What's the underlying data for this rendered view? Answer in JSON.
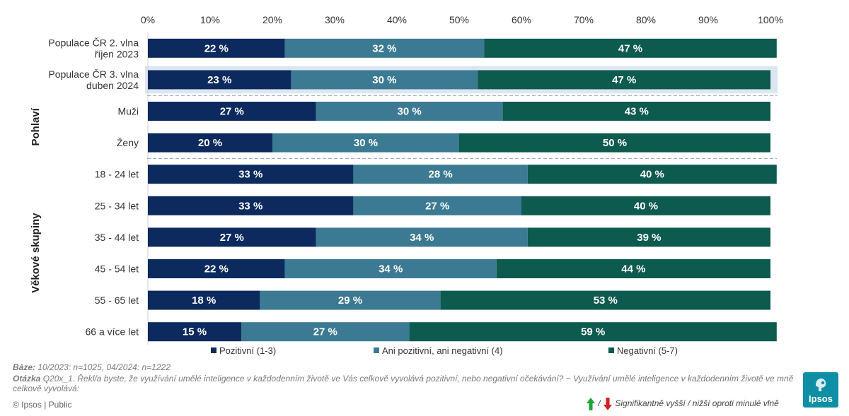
{
  "chart_data": {
    "type": "bar",
    "orientation": "horizontal",
    "stacked": true,
    "xlim": [
      0,
      100
    ],
    "x_ticks": [
      "0%",
      "10%",
      "20%",
      "30%",
      "40%",
      "50%",
      "60%",
      "70%",
      "80%",
      "90%",
      "100%"
    ],
    "categories": [
      "Populace ČR 2. vlna\nříjen 2023",
      "Populace ČR 3. vlna\nduben 2024",
      "Muži",
      "Ženy",
      "18 - 24 let",
      "25 - 34 let",
      "35 - 44 let",
      "45 - 54 let",
      "55 - 65 let",
      "66 a více let"
    ],
    "groups": [
      {
        "label": "Pohlaví",
        "categories": [
          "Muži",
          "Ženy"
        ]
      },
      {
        "label": "Věkové skupiny",
        "categories": [
          "18 - 24 let",
          "25 - 34 let",
          "35 - 44 let",
          "45 - 54 let",
          "55 - 65 let",
          "66 a více let"
        ]
      }
    ],
    "highlighted_category": "Populace ČR 3. vlna\nduben 2024",
    "series": [
      {
        "name": "Pozitivní (1-3)",
        "color": "#0d2a5e",
        "values": [
          22,
          23,
          27,
          20,
          33,
          33,
          27,
          22,
          18,
          15
        ]
      },
      {
        "name": "Ani pozitivní, ani negativní (4)",
        "color": "#3b7a92",
        "values": [
          32,
          30,
          30,
          30,
          28,
          27,
          34,
          34,
          29,
          27
        ]
      },
      {
        "name": "Negativní (5-7)",
        "color": "#0d5a4e",
        "values": [
          47,
          47,
          43,
          50,
          40,
          40,
          39,
          44,
          53,
          59
        ]
      }
    ],
    "data_label_suffix": " %",
    "legend_position": "bottom",
    "grid": false
  },
  "footer": {
    "base_label": "Báze:",
    "base_text": " 10/2023: n=1025, 04/2024: n=1222",
    "question_label": "Otázka",
    "question_text": " Q20x_1. Řekl/a byste, že využívání umělé inteligence v každodenním životě ve Vás celkově vyvolává pozitivní, nebo negativní očekávání? ~ Využívání umělé inteligence v každodenním životě ve mně celkově vyvolává:",
    "copyright": "© Ipsos | Public",
    "significance_sep": "/",
    "significance_text": "Signifikantně vyšší / nižší oproti minulé vlně"
  },
  "logo": {
    "text": "Ipsos",
    "color": "#0f8fa6"
  },
  "colors": {
    "up_arrow": "#1fa33a",
    "down_arrow": "#d42020",
    "highlight": "#dce6f0"
  }
}
